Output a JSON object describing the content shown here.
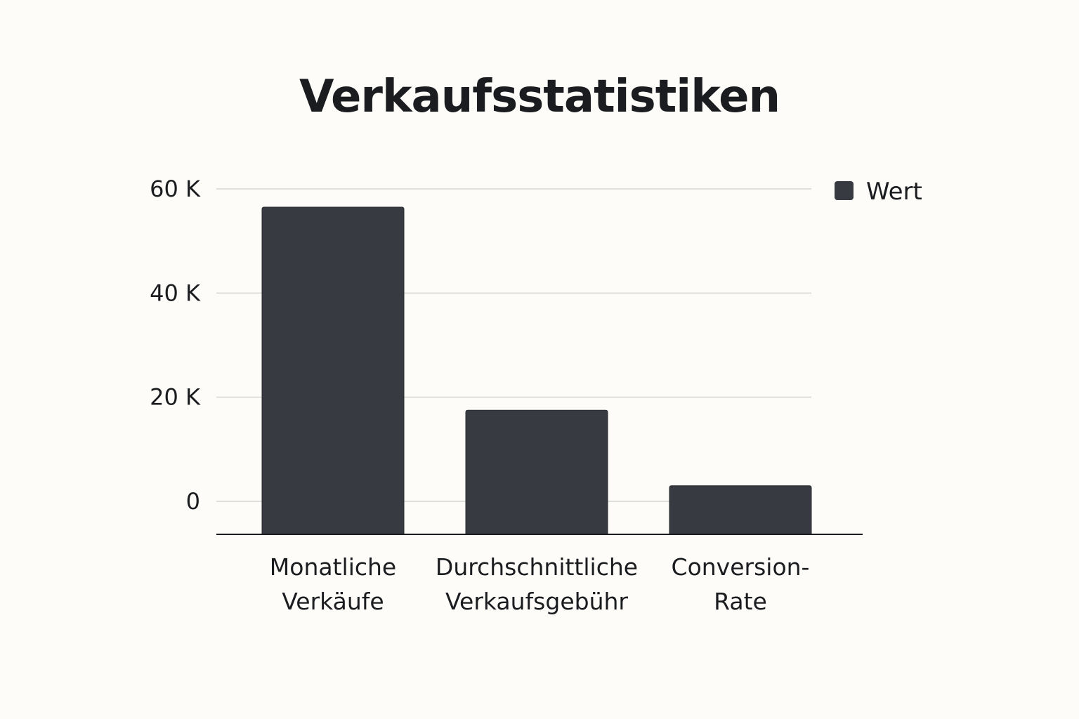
{
  "chart_data": {
    "type": "bar",
    "title": "Verkaufsstatistiken",
    "xlabel": "",
    "ylabel": "",
    "categories": [
      [
        "Monatliche",
        "Verkäufe"
      ],
      [
        "Durchschnittliche",
        "Verkaufsgebühr"
      ],
      [
        "Conversion-",
        "Rate"
      ]
    ],
    "series": [
      {
        "name": "Wert",
        "values": [
          56500,
          17500,
          3000
        ],
        "color": "#373a41"
      }
    ],
    "ylim": [
      0,
      60000
    ],
    "yticks": [
      {
        "value": 0,
        "label": "0"
      },
      {
        "value": 20000,
        "label": "20 K"
      },
      {
        "value": 40000,
        "label": "40 K"
      },
      {
        "value": 60000,
        "label": "60 K"
      }
    ],
    "grid": true,
    "legend_position": "top-right",
    "colors": {
      "background": "#fdfcf8",
      "grid": "#d4d4d2",
      "axis": "#1a1c1f",
      "text": "#1a1c1f"
    }
  }
}
